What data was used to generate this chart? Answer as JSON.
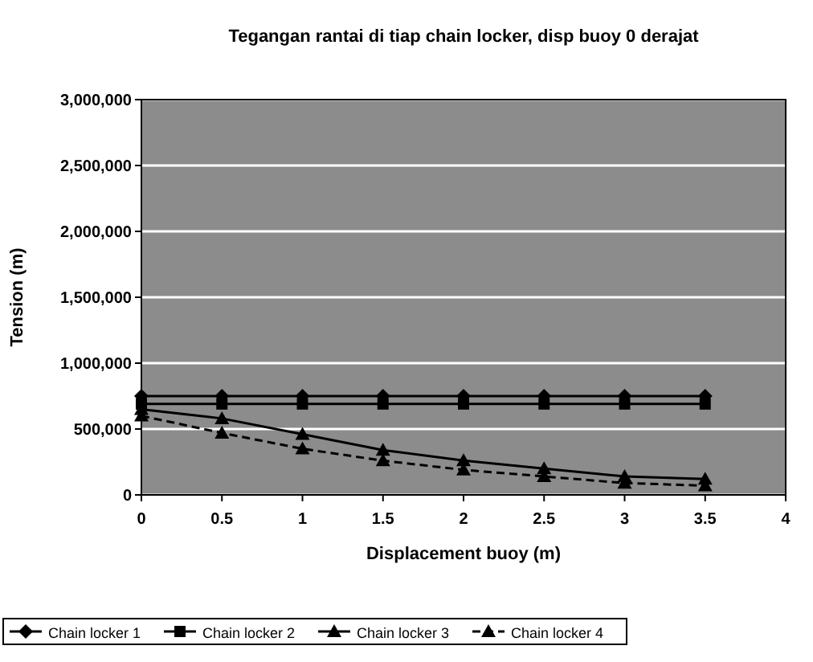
{
  "chart_data": {
    "type": "line",
    "title": "Tegangan rantai di tiap chain locker, disp buoy 0 derajat",
    "xlabel": "Displacement buoy (m)",
    "ylabel": "Tension (m)",
    "x": [
      0,
      0.5,
      1,
      1.5,
      2,
      2.5,
      3,
      3.5
    ],
    "series": [
      {
        "name": "Chain locker 1",
        "color": "#000000",
        "marker": "diamond",
        "values": [
          750000,
          750000,
          750000,
          750000,
          750000,
          750000,
          750000,
          750000
        ]
      },
      {
        "name": "Chain locker 2",
        "color": "#000000",
        "marker": "square",
        "values": [
          690000,
          690000,
          690000,
          690000,
          690000,
          690000,
          690000,
          690000
        ]
      },
      {
        "name": "Chain locker 3",
        "color": "#000000",
        "marker": "triangle",
        "values": [
          650000,
          580000,
          460000,
          340000,
          260000,
          200000,
          140000,
          120000
        ]
      },
      {
        "name": "Chain locker 4",
        "color": "#000000",
        "marker": "triangle",
        "line_style": "dashed",
        "values": [
          600000,
          470000,
          350000,
          260000,
          190000,
          140000,
          90000,
          70000
        ]
      }
    ],
    "xlim": [
      0,
      4
    ],
    "xticks": [
      0,
      {
        "value": 0.5,
        "label": "0.5"
      },
      1,
      {
        "value": 1.5,
        "label": "1.5"
      },
      2,
      {
        "value": 2.5,
        "label": "2.5"
      },
      3,
      {
        "value": 3.5,
        "label": "3.5"
      },
      4
    ],
    "ylim": [
      0,
      3000000
    ],
    "yticks": [
      0,
      {
        "value": 500000,
        "label": "500,000"
      },
      {
        "value": 1000000,
        "label": "1,000,000"
      },
      {
        "value": 1500000,
        "label": "1,500,000"
      },
      {
        "value": 2000000,
        "label": "2,000,000"
      },
      {
        "value": 2500000,
        "label": "2,500,000"
      },
      {
        "value": 3000000,
        "label": "3,000,000"
      }
    ],
    "grid": "y",
    "legend": "bottom left"
  }
}
